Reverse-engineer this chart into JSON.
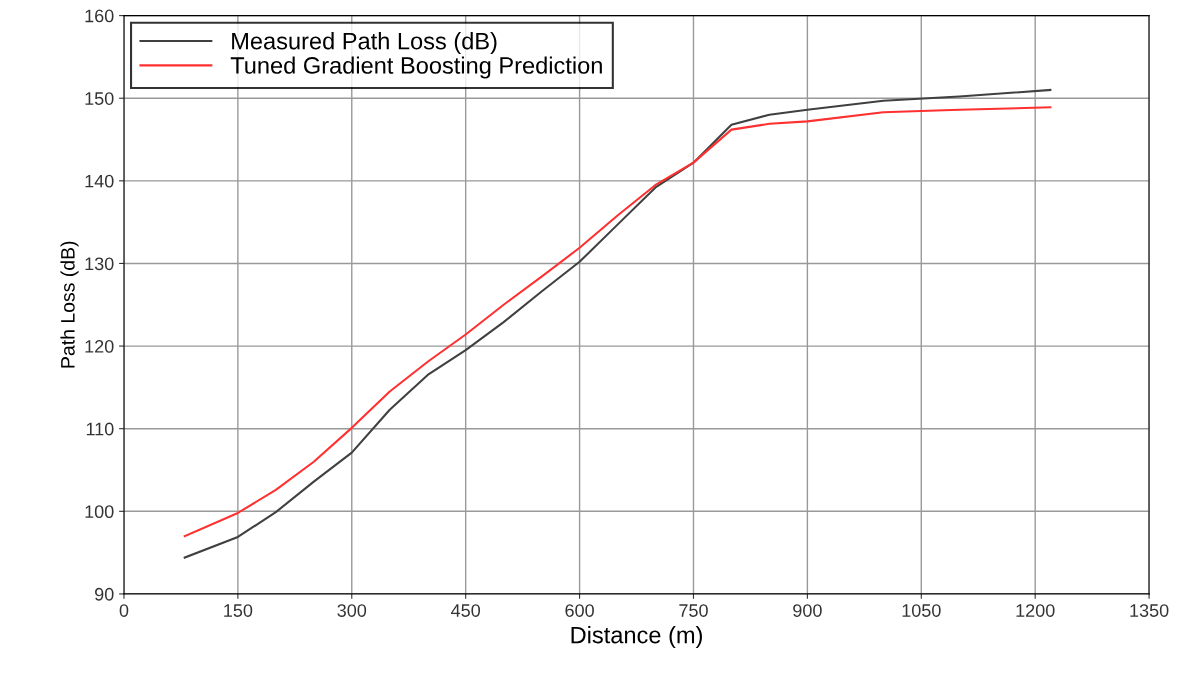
{
  "chart_data": {
    "type": "line",
    "xlabel": "Distance (m)",
    "ylabel": "Path Loss (dB)",
    "x": [
      80,
      150,
      200,
      250,
      300,
      350,
      400,
      450,
      500,
      550,
      600,
      650,
      700,
      750,
      800,
      850,
      900,
      1000,
      1100,
      1220
    ],
    "series": [
      {
        "name": "Measured Path Loss (dB)",
        "color": "#404040",
        "values": [
          94.4,
          96.9,
          99.9,
          103.6,
          107.1,
          112.3,
          116.5,
          119.5,
          122.9,
          126.6,
          130.2,
          134.7,
          139.2,
          142.2,
          146.8,
          148.0,
          148.6,
          149.7,
          150.2,
          151.0
        ]
      },
      {
        "name": "Tuned Gradient Boosting Prediction",
        "color": "#ff3030",
        "values": [
          97.0,
          99.8,
          102.6,
          106.0,
          110.1,
          114.5,
          118.1,
          121.4,
          125.0,
          128.4,
          131.9,
          135.8,
          139.5,
          142.2,
          146.2,
          146.9,
          147.2,
          148.3,
          148.6,
          148.9
        ]
      }
    ],
    "xlim": [
      0,
      1350
    ],
    "xticks": [
      0,
      150,
      300,
      450,
      600,
      750,
      900,
      1050,
      1200,
      1350
    ],
    "ylim": [
      90,
      160
    ],
    "yticks": [
      90,
      100,
      110,
      120,
      130,
      140,
      150,
      160
    ],
    "grid": true,
    "legend": "top left",
    "marker": "none",
    "line_style": "solid"
  }
}
